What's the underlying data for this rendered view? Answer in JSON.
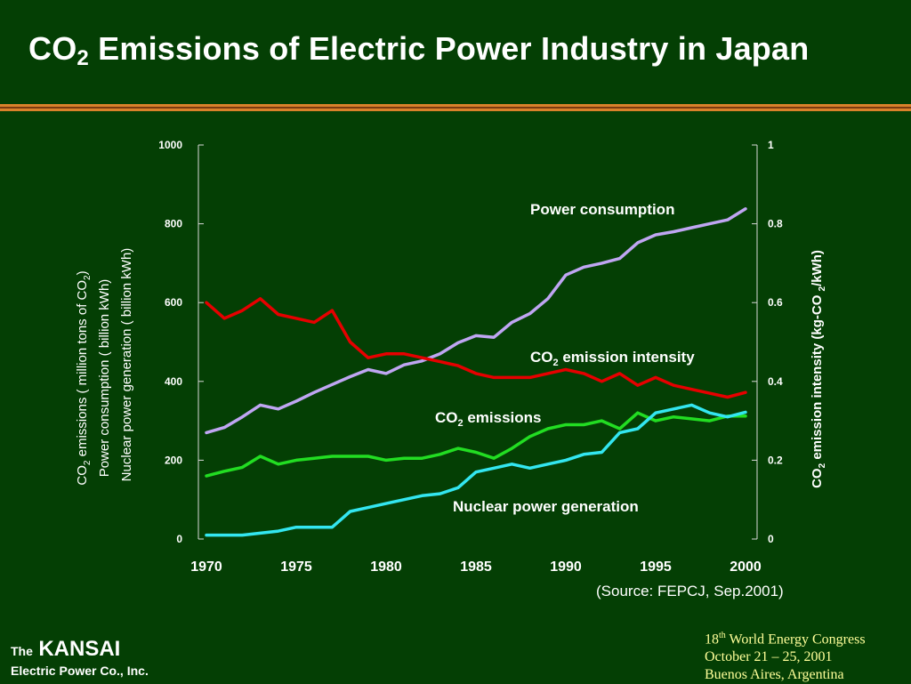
{
  "slide": {
    "title_pre": "CO",
    "title_sub": "2",
    "title_post": " Emissions of Electric Power Industry in Japan",
    "source": "(Source: FEPCJ, Sep.2001)",
    "logo_the": "The",
    "logo_name": "KANSAI",
    "logo_sub": "Electric Power Co., Inc.",
    "event_ord_num": "18",
    "event_ord_sup": "th",
    "event_line1_rest": " World Energy Congress",
    "event_line2": "October 21 – 25, 2001",
    "event_line3": "Buenos Aires, Argentina",
    "colors": {
      "background": "#043f04",
      "rule_orange": "#d9822b",
      "event_text": "#ffff99"
    }
  },
  "chart_data": {
    "type": "line",
    "x": [
      1970,
      1971,
      1972,
      1973,
      1974,
      1975,
      1976,
      1977,
      1978,
      1979,
      1980,
      1981,
      1982,
      1983,
      1984,
      1985,
      1986,
      1987,
      1988,
      1989,
      1990,
      1991,
      1992,
      1993,
      1994,
      1995,
      1996,
      1997,
      1998,
      1999,
      2000
    ],
    "x_ticks": [
      "1970",
      "1975",
      "1980",
      "1985",
      "1990",
      "1995",
      "2000"
    ],
    "xlim": [
      1970,
      2000
    ],
    "y_left": {
      "lim": [
        0,
        1000
      ],
      "ticks": [
        "0",
        "200",
        "400",
        "600",
        "800",
        "1000"
      ],
      "label_lines": [
        {
          "pre": "CO",
          "sub": "2",
          "post": " emissions ( million tons of CO",
          "sub2": "2",
          "post2": ")"
        },
        {
          "pre": "Power consumption ( billion kWh)"
        },
        {
          "pre": "Nuclear power generation ( billion kWh)"
        }
      ]
    },
    "y_right": {
      "lim": [
        0,
        1
      ],
      "ticks": [
        "0",
        "0.2",
        "0.4",
        "0.6",
        "0.8",
        "1"
      ],
      "label": {
        "pre": "CO",
        "sub": "2",
        "mid": " emission intensity  (kg-CO ",
        "sub2": "2",
        "post": "/kWh)"
      }
    },
    "series": [
      {
        "name": "Power consumption",
        "axis": "left",
        "color": "#bfa6f2",
        "values": [
          270,
          283,
          310,
          340,
          330,
          350,
          372,
          392,
          412,
          430,
          420,
          442,
          452,
          470,
          498,
          516,
          512,
          550,
          572,
          610,
          670,
          690,
          700,
          712,
          752,
          772,
          780,
          790,
          800,
          810,
          838
        ]
      },
      {
        "name_pre": "CO",
        "name_sub": "2",
        "name_post": " emission intensity",
        "axis": "right",
        "color": "#e60000",
        "values": [
          0.6,
          0.56,
          0.58,
          0.61,
          0.57,
          0.56,
          0.55,
          0.58,
          0.5,
          0.46,
          0.47,
          0.47,
          0.46,
          0.45,
          0.44,
          0.42,
          0.41,
          0.41,
          0.41,
          0.42,
          0.43,
          0.42,
          0.4,
          0.42,
          0.39,
          0.41,
          0.39,
          0.38,
          0.37,
          0.36,
          0.372
        ]
      },
      {
        "name_pre": "CO",
        "name_sub": "2",
        "name_post": " emissions",
        "axis": "left",
        "color": "#22dd22",
        "values": [
          160,
          172,
          182,
          210,
          190,
          200,
          205,
          210,
          210,
          210,
          200,
          205,
          205,
          215,
          230,
          220,
          205,
          230,
          260,
          280,
          290,
          290,
          300,
          280,
          320,
          300,
          310,
          305,
          300,
          312,
          312
        ]
      },
      {
        "name": "Nuclear power generation",
        "axis": "left",
        "color": "#33e6f0",
        "values": [
          10,
          10,
          10,
          15,
          20,
          30,
          30,
          30,
          70,
          80,
          90,
          100,
          110,
          115,
          130,
          170,
          180,
          190,
          180,
          190,
          200,
          215,
          220,
          270,
          280,
          320,
          330,
          340,
          320,
          310,
          322
        ]
      }
    ]
  }
}
